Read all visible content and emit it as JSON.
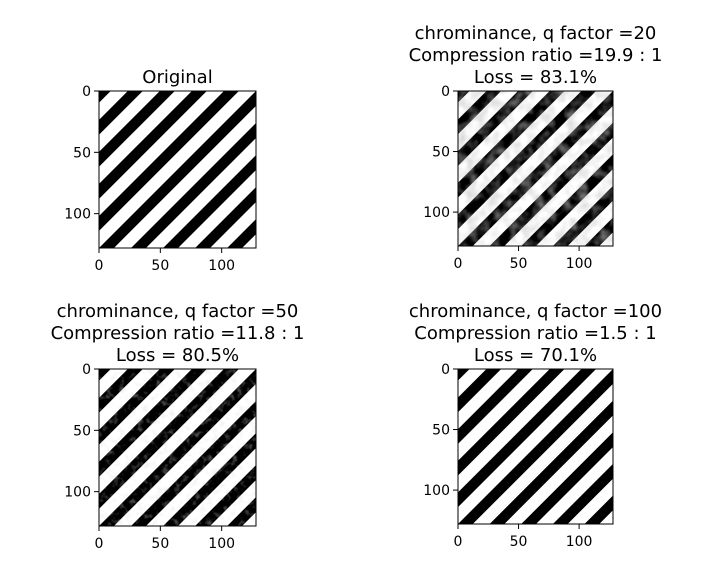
{
  "chart_data": [
    {
      "type": "heatmap",
      "title": [
        "Original"
      ],
      "image": "diagonal black-and-white stripes",
      "artifacts": "none",
      "xlim": [
        0,
        128
      ],
      "ylim": [
        128,
        0
      ],
      "xticks": [
        0,
        50,
        100
      ],
      "yticks": [
        0,
        50,
        100
      ]
    },
    {
      "type": "heatmap",
      "title": [
        "chrominance, q factor =20",
        "Compression ratio =19.9 : 1",
        "Loss = 83.1%"
      ],
      "q_factor": 20,
      "compression_ratio": 19.9,
      "loss_percent": 83.1,
      "image": "diagonal black-and-white stripes",
      "artifacts": "heavy blocky noise",
      "xlim": [
        0,
        128
      ],
      "ylim": [
        128,
        0
      ],
      "xticks": [
        0,
        50,
        100
      ],
      "yticks": [
        0,
        50,
        100
      ]
    },
    {
      "type": "heatmap",
      "title": [
        "chrominance, q factor =50",
        "Compression ratio =11.8 : 1",
        "Loss = 80.5%"
      ],
      "q_factor": 50,
      "compression_ratio": 11.8,
      "loss_percent": 80.5,
      "image": "diagonal black-and-white stripes",
      "artifacts": "moderate speckle noise",
      "xlim": [
        0,
        128
      ],
      "ylim": [
        128,
        0
      ],
      "xticks": [
        0,
        50,
        100
      ],
      "yticks": [
        0,
        50,
        100
      ]
    },
    {
      "type": "heatmap",
      "title": [
        "chrominance, q factor =100",
        "Compression ratio =1.5 : 1",
        "Loss = 70.1%"
      ],
      "q_factor": 100,
      "compression_ratio": 1.5,
      "loss_percent": 70.1,
      "image": "diagonal black-and-white stripes",
      "artifacts": "minimal",
      "xlim": [
        0,
        128
      ],
      "ylim": [
        128,
        0
      ],
      "xticks": [
        0,
        50,
        100
      ],
      "yticks": [
        0,
        50,
        100
      ]
    }
  ],
  "colors": {
    "stripe_dark": "#000000",
    "stripe_light": "#ffffff",
    "axis": "#000000"
  }
}
